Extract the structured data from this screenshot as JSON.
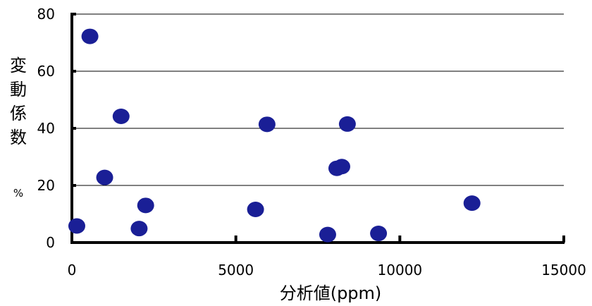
{
  "chart_data": {
    "type": "scatter",
    "xlabel": "分析値(ppm)",
    "ylabel": "変動係数",
    "ylabel_unit": "%",
    "xlim": [
      0,
      15000
    ],
    "ylim": [
      0,
      80
    ],
    "x_ticks": [
      0,
      5000,
      10000,
      15000
    ],
    "y_ticks": [
      0,
      20,
      40,
      60,
      80
    ],
    "x_tick_labels": [
      "0",
      "5000",
      "10000",
      "15000"
    ],
    "y_tick_labels": [
      "0",
      "20",
      "40",
      "60",
      "80"
    ],
    "grid": "horizontal",
    "marker_color": "#1a1f96",
    "series": [
      {
        "points": [
          {
            "x": 150,
            "y": 5.8
          },
          {
            "x": 550,
            "y": 72.2
          },
          {
            "x": 1000,
            "y": 22.8
          },
          {
            "x": 1500,
            "y": 44.2
          },
          {
            "x": 2050,
            "y": 4.9
          },
          {
            "x": 2250,
            "y": 13.0
          },
          {
            "x": 5600,
            "y": 11.6
          },
          {
            "x": 5950,
            "y": 41.4
          },
          {
            "x": 7800,
            "y": 2.8
          },
          {
            "x": 8080,
            "y": 26.0
          },
          {
            "x": 8230,
            "y": 26.6
          },
          {
            "x": 8400,
            "y": 41.5
          },
          {
            "x": 9350,
            "y": 3.2
          },
          {
            "x": 12200,
            "y": 13.8
          }
        ]
      }
    ]
  }
}
